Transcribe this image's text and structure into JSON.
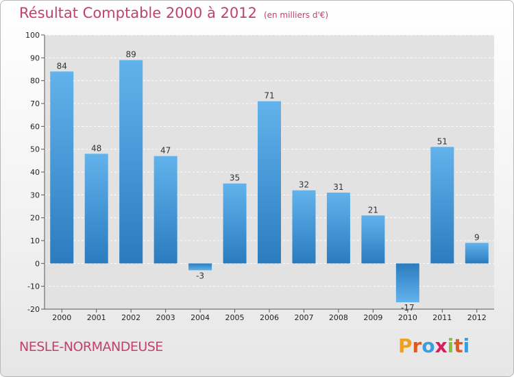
{
  "header": {
    "title": "Résultat Comptable 2000 à 2012",
    "subtitle": "(en milliers d'€)"
  },
  "footer": {
    "commune": "NESLE-NORMANDEUSE",
    "logo_letters": [
      "P",
      "r",
      "o",
      "x",
      "i",
      "t",
      "i"
    ]
  },
  "colors": {
    "title": "#c24070",
    "bar_light": "#62b2ec",
    "bar_dark": "#2a7cbf",
    "logo": [
      "#f0a020",
      "#e05a20",
      "#3a9de0",
      "#d81c5c",
      "#88c23a",
      "#e05a20",
      "#3a9de0"
    ]
  },
  "chart_data": {
    "type": "bar",
    "categories": [
      "2000",
      "2001",
      "2002",
      "2003",
      "2004",
      "2005",
      "2006",
      "2007",
      "2008",
      "2009",
      "2010",
      "2011",
      "2012"
    ],
    "values": [
      84,
      48,
      89,
      47,
      -3,
      35,
      71,
      32,
      31,
      21,
      -17,
      51,
      9
    ],
    "ylim": [
      -20,
      100
    ],
    "yticks": [
      -20,
      -10,
      0,
      10,
      20,
      30,
      40,
      50,
      60,
      70,
      80,
      90,
      100
    ],
    "grid": true,
    "legend": "none"
  }
}
